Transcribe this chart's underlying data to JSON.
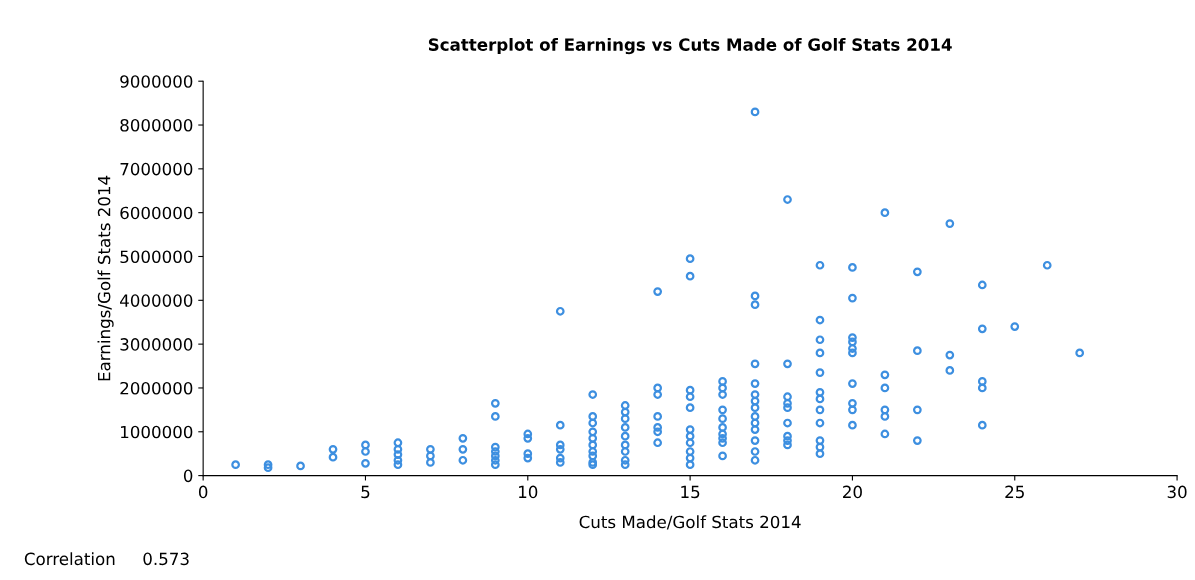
{
  "chart_data": {
    "type": "scatter",
    "title": "Scatterplot of Earnings vs Cuts Made of Golf Stats 2014",
    "xlabel": "Cuts Made/Golf Stats 2014",
    "ylabel": "Earnings/Golf Stats 2014",
    "annotations": [
      "Correlation     0.573"
    ],
    "xlim": [
      0,
      30
    ],
    "xticks": [
      0,
      5,
      10,
      15,
      20,
      25,
      30
    ],
    "ylim": [
      0,
      9000000
    ],
    "yticks": [
      0,
      1000000,
      2000000,
      3000000,
      4000000,
      5000000,
      6000000,
      7000000,
      8000000,
      9000000
    ],
    "grid": false,
    "marker": "circle",
    "legend": false,
    "series": [
      {
        "color": "#3d8fe0",
        "x": [
          1,
          2,
          2,
          3,
          4,
          4,
          5,
          5,
          5,
          6,
          6,
          6,
          6,
          6,
          7,
          7,
          7,
          8,
          8,
          8,
          9,
          9,
          9,
          9,
          9,
          9,
          9,
          10,
          10,
          10,
          10,
          11,
          11,
          11,
          11,
          11,
          11,
          12,
          12,
          12,
          12,
          12,
          12,
          12,
          12,
          12,
          12,
          13,
          13,
          13,
          13,
          13,
          13,
          13,
          13,
          13,
          14,
          14,
          14,
          14,
          14,
          14,
          14,
          15,
          15,
          15,
          15,
          15,
          15,
          15,
          15,
          15,
          15,
          15,
          16,
          16,
          16,
          16,
          16,
          16,
          16,
          16,
          16,
          16,
          17,
          17,
          17,
          17,
          17,
          17,
          17,
          17,
          17,
          17,
          17,
          17,
          17,
          17,
          18,
          18,
          18,
          18,
          18,
          18,
          18,
          18,
          18,
          19,
          19,
          19,
          19,
          19,
          19,
          19,
          19,
          19,
          19,
          19,
          19,
          20,
          20,
          20,
          20,
          20,
          20,
          20,
          20,
          20,
          20,
          21,
          21,
          21,
          21,
          21,
          21,
          22,
          22,
          22,
          22,
          23,
          23,
          23,
          24,
          24,
          24,
          24,
          24,
          25,
          26,
          27
        ],
        "values": [
          250000,
          250000,
          180000,
          220000,
          600000,
          420000,
          700000,
          550000,
          280000,
          750000,
          600000,
          480000,
          350000,
          250000,
          600000,
          450000,
          300000,
          850000,
          600000,
          350000,
          1650000,
          1350000,
          650000,
          550000,
          450000,
          350000,
          250000,
          950000,
          850000,
          500000,
          400000,
          3750000,
          1150000,
          700000,
          600000,
          400000,
          300000,
          1850000,
          1350000,
          1200000,
          1000000,
          850000,
          700000,
          550000,
          450000,
          300000,
          250000,
          1600000,
          1450000,
          1300000,
          1100000,
          900000,
          700000,
          550000,
          350000,
          250000,
          4200000,
          2000000,
          1850000,
          1350000,
          1100000,
          1000000,
          750000,
          4950000,
          4550000,
          1950000,
          1800000,
          1550000,
          1050000,
          900000,
          750000,
          550000,
          400000,
          250000,
          2150000,
          2000000,
          1850000,
          1500000,
          1300000,
          1100000,
          950000,
          850000,
          750000,
          450000,
          8300000,
          4100000,
          3900000,
          2550000,
          2100000,
          1850000,
          1700000,
          1550000,
          1350000,
          1200000,
          1050000,
          800000,
          550000,
          350000,
          6300000,
          2550000,
          1800000,
          1650000,
          1550000,
          1200000,
          900000,
          800000,
          700000,
          4800000,
          3550000,
          3100000,
          2800000,
          2350000,
          1900000,
          1750000,
          1500000,
          1200000,
          800000,
          650000,
          500000,
          4750000,
          4050000,
          3150000,
          3050000,
          2900000,
          2800000,
          2100000,
          1650000,
          1500000,
          1150000,
          6000000,
          2300000,
          2000000,
          1500000,
          1350000,
          950000,
          4650000,
          2850000,
          1500000,
          800000,
          5750000,
          2750000,
          2400000,
          4350000,
          3350000,
          2150000,
          2000000,
          1150000,
          3400000,
          4800000,
          2800000
        ]
      }
    ]
  }
}
